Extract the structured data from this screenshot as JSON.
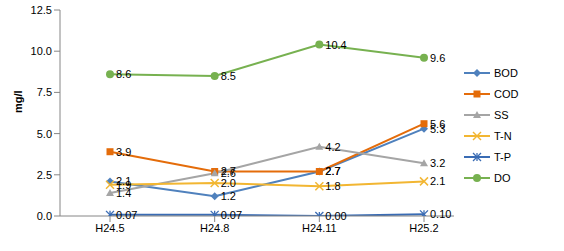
{
  "chart_data": {
    "type": "line",
    "y_label": "mg/l",
    "categories": [
      "H24.5",
      "H24.8",
      "H24.11",
      "H25.2"
    ],
    "ylim": [
      0,
      12.5
    ],
    "yticks": [
      {
        "value": 0,
        "label": "0.0"
      },
      2.5,
      {
        "value": 5,
        "label": "5.0"
      },
      7.5,
      {
        "value": 10,
        "label": "10.0"
      },
      12.5
    ],
    "grid": false,
    "legend": "right",
    "data_labels": true,
    "series": [
      {
        "name": "BOD",
        "color": "#4F81BD",
        "marker": "diamond",
        "values": [
          2.1,
          1.2,
          2.7,
          5.3
        ],
        "value_labels": [
          "2.1",
          "1.2",
          "2.7",
          "5.3"
        ]
      },
      {
        "name": "COD",
        "color": "#E46C0A",
        "marker": "square",
        "values": [
          3.9,
          2.7,
          2.7,
          5.6
        ],
        "value_labels": [
          "3.9",
          "2.7",
          "2.7",
          "5.6"
        ]
      },
      {
        "name": "SS",
        "color": "#A5A5A5",
        "marker": "triangle",
        "values": [
          1.4,
          2.6,
          4.2,
          3.2
        ],
        "value_labels": [
          "1.4",
          "2.6",
          "4.2",
          "3.2"
        ]
      },
      {
        "name": "T-N",
        "color": "#F2B632",
        "marker": "x",
        "values": [
          1.9,
          2.0,
          1.8,
          2.1
        ],
        "value_labels": [
          "1.9",
          "2.0",
          "1.8",
          "2.1"
        ]
      },
      {
        "name": "T-P",
        "color": "#3A6CB4",
        "marker": "star",
        "values": [
          0.07,
          0.07,
          0.0,
          0.1
        ],
        "value_labels": [
          "0.07",
          "0.07",
          "0.00",
          "0.10"
        ]
      },
      {
        "name": "DO",
        "color": "#77B150",
        "marker": "circle",
        "values": [
          8.6,
          8.5,
          10.4,
          9.6
        ],
        "value_labels": [
          "8.6",
          "8.5",
          "10.4",
          "9.6"
        ]
      }
    ]
  }
}
